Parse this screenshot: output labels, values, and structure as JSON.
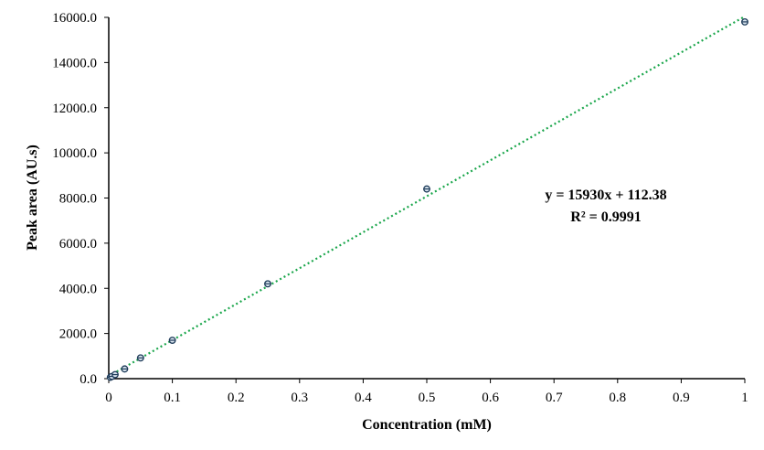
{
  "chart_data": {
    "type": "scatter",
    "xlabel": "Concentration  (mM)",
    "ylabel": "Peak area (AU.s)",
    "xlim": [
      0,
      1
    ],
    "ylim": [
      0,
      16000
    ],
    "x_ticks": [
      "0",
      "0.1",
      "0.2",
      "0.3",
      "0.4",
      "0.5",
      "0.6",
      "0.7",
      "0.8",
      "0.9",
      "1"
    ],
    "y_ticks": [
      "0.0",
      "2000.0",
      "4000.0",
      "6000.0",
      "8000.0",
      "10000.0",
      "12000.0",
      "14000.0",
      "16000.0"
    ],
    "x": [
      0.0025,
      0.005,
      0.01,
      0.025,
      0.05,
      0.1,
      0.25,
      0.5,
      1.0
    ],
    "y": [
      60,
      100,
      180,
      430,
      920,
      1700,
      4200,
      8400,
      15800
    ],
    "trendline": {
      "type": "linear",
      "slope": 15930,
      "intercept": 112.38,
      "style": "dotted",
      "color": "#1aa64b",
      "equation": "y = 15930x + 112.38",
      "r_squared": "R² = 0.9991"
    },
    "marker_color": "#1f3c5a",
    "grid": false,
    "legend": "none"
  }
}
